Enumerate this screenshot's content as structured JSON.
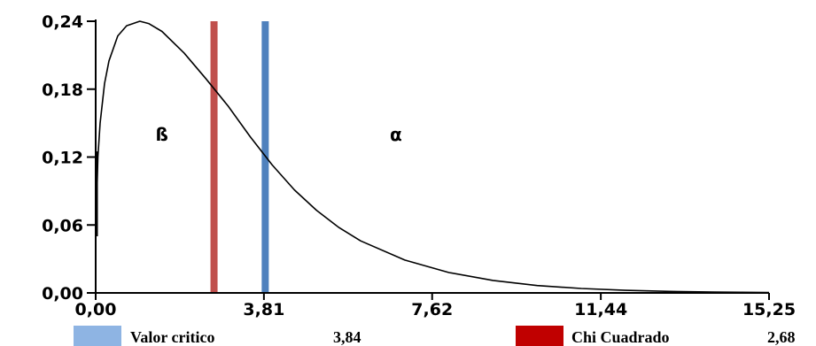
{
  "chart_data": {
    "type": "line",
    "title": "",
    "xlabel": "",
    "ylabel": "",
    "xlim": [
      0,
      15.25
    ],
    "ylim": [
      0,
      0.24
    ],
    "x_ticks": [
      0,
      3.81,
      7.62,
      11.44,
      15.25
    ],
    "x_tick_labels": [
      "0,00",
      "3,81",
      "7,62",
      "11,44",
      "15,25"
    ],
    "y_ticks": [
      0,
      0.06,
      0.12,
      0.18,
      0.24
    ],
    "y_tick_labels": [
      "0,00",
      "0,06",
      "0,12",
      "0,18",
      "0,24"
    ],
    "grid": false,
    "legend_position": "bottom",
    "series": [
      {
        "type": "line",
        "color": "#000000",
        "x": [
          0,
          0.05,
          0.1,
          0.2,
          0.3,
          0.5,
          0.7,
          1.0,
          1.2,
          1.5,
          2.0,
          2.5,
          3.0,
          3.5,
          4.0,
          4.5,
          5.0,
          5.5,
          6.0,
          7.0,
          8.0,
          9.0,
          10.0,
          11.0,
          12.0,
          13.0,
          14.0,
          15.25
        ],
        "y": [
          0.05,
          0.12,
          0.15,
          0.185,
          0.205,
          0.227,
          0.236,
          0.24,
          0.238,
          0.231,
          0.212,
          0.189,
          0.165,
          0.138,
          0.113,
          0.091,
          0.073,
          0.058,
          0.046,
          0.029,
          0.018,
          0.011,
          0.0065,
          0.0039,
          0.0023,
          0.0013,
          0.0008,
          0.0004
        ]
      }
    ],
    "vertical_lines": [
      {
        "name": "Chi Cuadrado",
        "x": 2.68,
        "color": "#c0504d"
      },
      {
        "name": "Valor critico",
        "x": 3.84,
        "color": "#4f81bd"
      }
    ],
    "annotations": [
      {
        "text": "ß",
        "x": 1.5,
        "y": 0.14
      },
      {
        "text": "α",
        "x": 6.8,
        "y": 0.14
      }
    ],
    "legend": [
      {
        "label": "Valor critico",
        "value": "3,84",
        "color": "#8eb4e3"
      },
      {
        "label": "Chi Cuadrado",
        "value": "2,68",
        "color": "#c00000"
      }
    ]
  }
}
